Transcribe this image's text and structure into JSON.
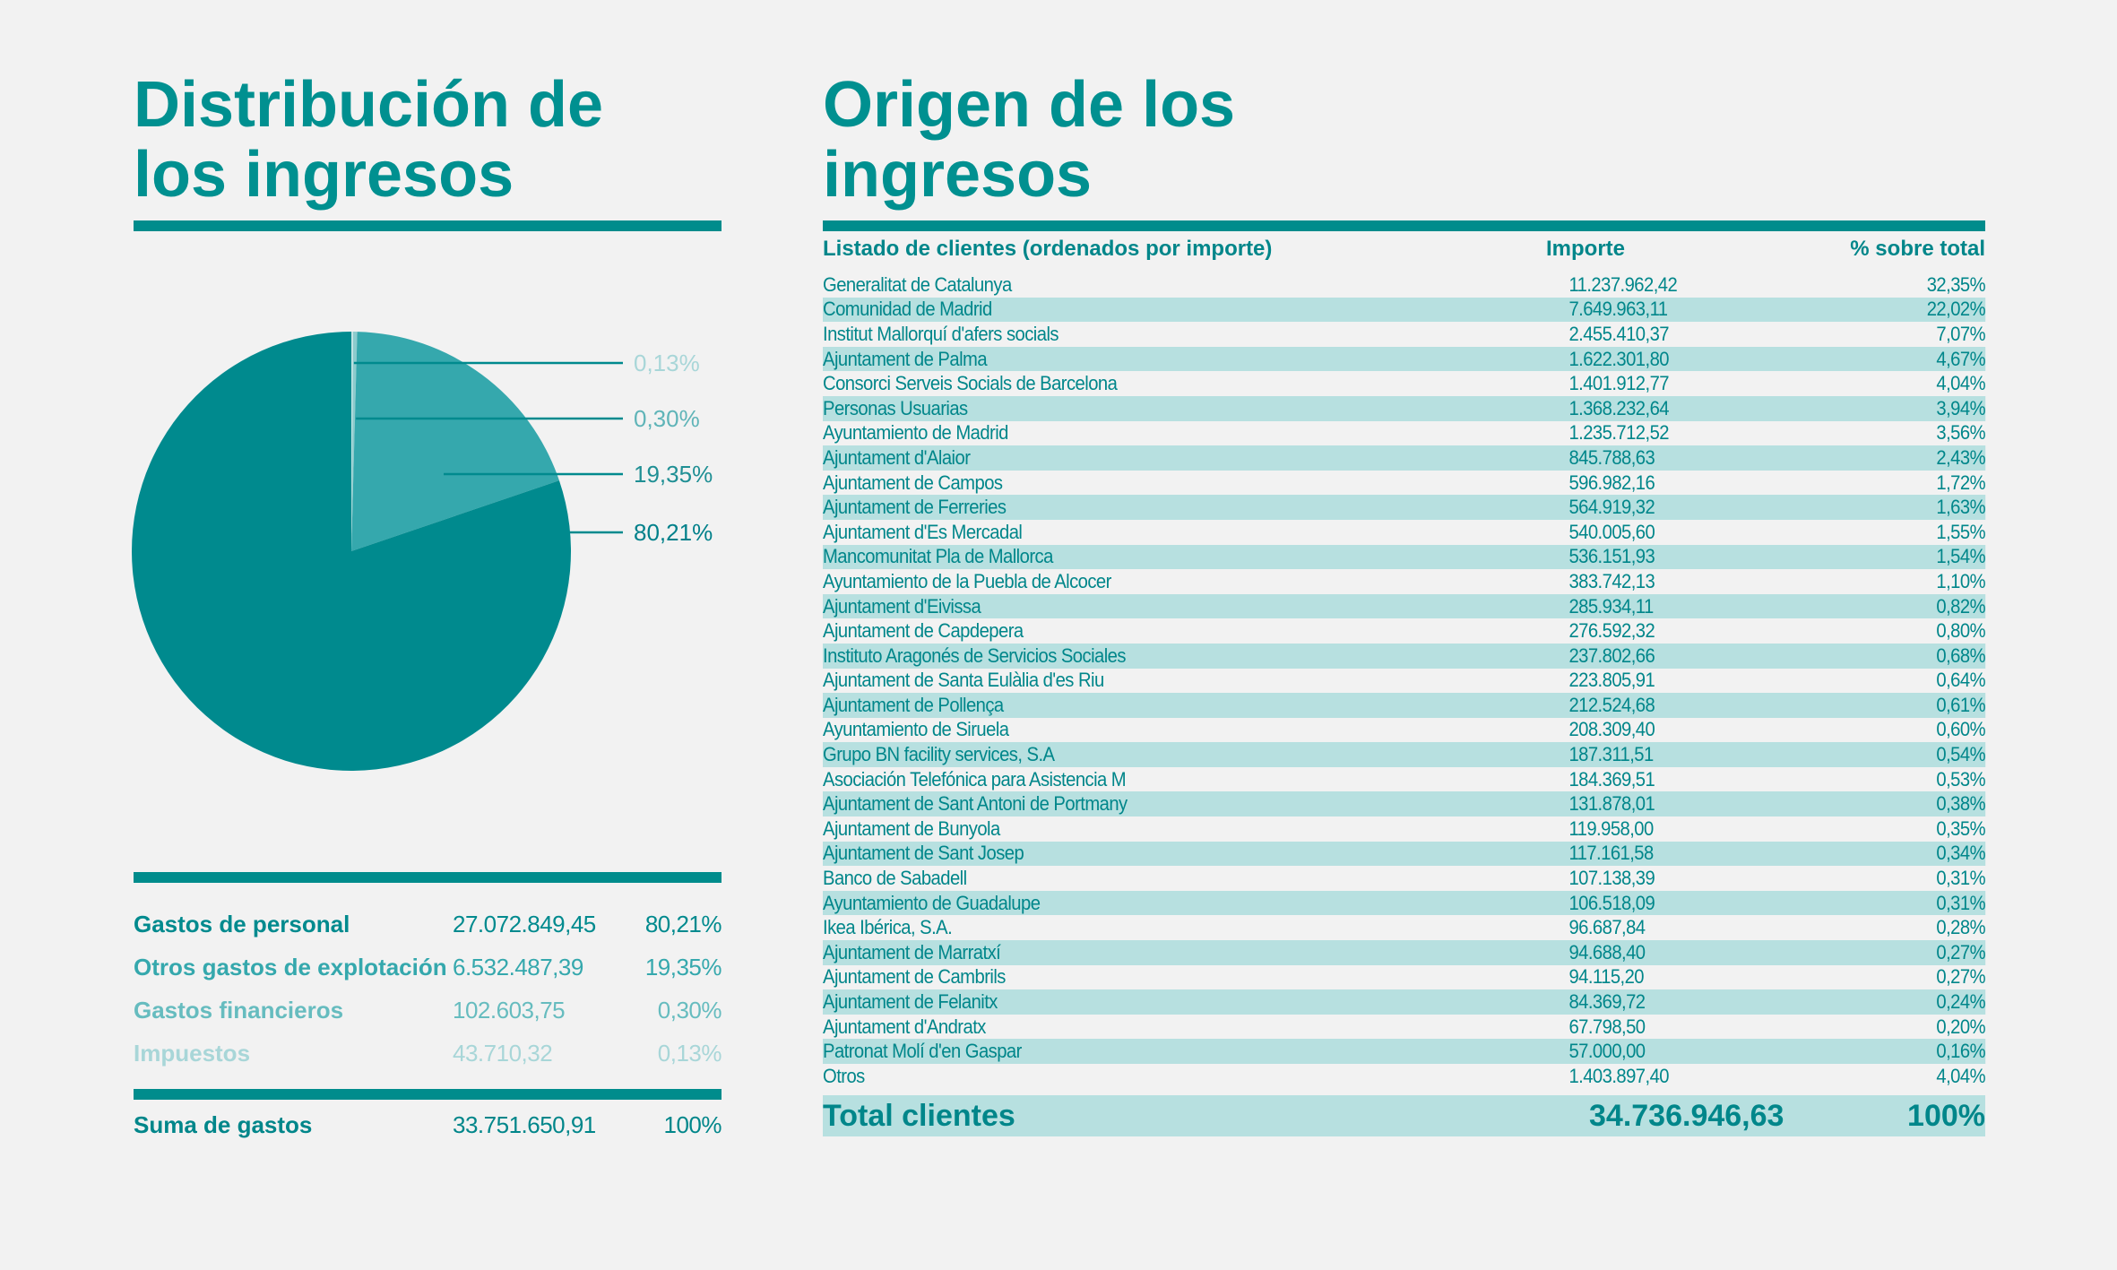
{
  "left": {
    "title_lines": [
      "Distribución de",
      "los ingresos"
    ],
    "summary": [
      {
        "name": "Gastos de personal",
        "amount": "27.072.849,45",
        "pct": "80,21%",
        "color": "#008a8e"
      },
      {
        "name": "Otros gastos de explotación",
        "amount": "6.532.487,39",
        "pct": "19,35%",
        "color": "#35a8ad"
      },
      {
        "name": "Gastos financieros",
        "amount": "102.603,75",
        "pct": "0,30%",
        "color": "#66bcbf"
      },
      {
        "name": "Impuestos",
        "amount": "43.710,32",
        "pct": "0,13%",
        "color": "#a8d6d8"
      }
    ],
    "total": {
      "name": "Suma de gastos",
      "amount": "33.751.650,91",
      "pct": "100%"
    }
  },
  "chart_data": {
    "type": "pie",
    "slices": [
      {
        "label": "0,13%",
        "value": 0.13,
        "color": "#c4e4e5"
      },
      {
        "label": "0,30%",
        "value": 0.3,
        "color": "#8ccbcd"
      },
      {
        "label": "19,35%",
        "value": 19.35,
        "color": "#35a8ad"
      },
      {
        "label": "80,21%",
        "value": 80.21,
        "color": "#008a8e"
      }
    ],
    "label_colors": [
      "#a8d6d8",
      "#5fb4b8",
      "#1f8f94",
      "#00808a"
    ]
  },
  "right": {
    "title_lines": [
      "Origen de los",
      "ingresos"
    ],
    "headers": {
      "client": "Listado de clientes (ordenados por importe)",
      "amount": "Importe",
      "pct": "% sobre total"
    },
    "rows": [
      {
        "name": "Generalitat de Catalunya",
        "amount": "11.237.962,42",
        "pct": "32,35%"
      },
      {
        "name": "Comunidad de Madrid",
        "amount": "7.649.963,11",
        "pct": "22,02%"
      },
      {
        "name": "Institut Mallorquí d'afers socials",
        "amount": "2.455.410,37",
        "pct": "7,07%"
      },
      {
        "name": "Ajuntament de Palma",
        "amount": "1.622.301,80",
        "pct": "4,67%"
      },
      {
        "name": "Consorci Serveis Socials de Barcelona",
        "amount": "1.401.912,77",
        "pct": "4,04%"
      },
      {
        "name": "Personas Usuarias",
        "amount": "1.368.232,64",
        "pct": "3,94%"
      },
      {
        "name": "Ayuntamiento de Madrid",
        "amount": "1.235.712,52",
        "pct": "3,56%"
      },
      {
        "name": "Ajuntament d'Alaior",
        "amount": "845.788,63",
        "pct": "2,43%"
      },
      {
        "name": "Ajuntament de Campos",
        "amount": "596.982,16",
        "pct": "1,72%"
      },
      {
        "name": "Ajuntament de Ferreries",
        "amount": "564.919,32",
        "pct": "1,63%"
      },
      {
        "name": "Ajuntament d'Es Mercadal",
        "amount": "540.005,60",
        "pct": "1,55%"
      },
      {
        "name": "Mancomunitat Pla de Mallorca",
        "amount": "536.151,93",
        "pct": "1,54%"
      },
      {
        "name": "Ayuntamiento de la Puebla de Alcocer",
        "amount": "383.742,13",
        "pct": "1,10%"
      },
      {
        "name": "Ajuntament d'Eivissa",
        "amount": "285.934,11",
        "pct": "0,82%"
      },
      {
        "name": "Ajuntament de Capdepera",
        "amount": "276.592,32",
        "pct": "0,80%"
      },
      {
        "name": "Instituto Aragonés de Servicios Sociales",
        "amount": "237.802,66",
        "pct": "0,68%"
      },
      {
        "name": "Ajuntament de Santa Eulàlia d'es Riu",
        "amount": "223.805,91",
        "pct": "0,64%"
      },
      {
        "name": "Ajuntament de Pollença",
        "amount": "212.524,68",
        "pct": "0,61%"
      },
      {
        "name": "Ayuntamiento de Siruela",
        "amount": "208.309,40",
        "pct": "0,60%"
      },
      {
        "name": "Grupo BN facility services, S.A",
        "amount": "187.311,51",
        "pct": "0,54%"
      },
      {
        "name": "Asociación Telefónica para Asistencia M",
        "amount": "184.369,51",
        "pct": "0,53%"
      },
      {
        "name": "Ajuntament de Sant Antoni de Portmany",
        "amount": "131.878,01",
        "pct": "0,38%"
      },
      {
        "name": "Ajuntament de Bunyola",
        "amount": "119.958,00",
        "pct": "0,35%"
      },
      {
        "name": "Ajuntament de Sant Josep",
        "amount": "117.161,58",
        "pct": "0,34%"
      },
      {
        "name": "Banco de Sabadell",
        "amount": "107.138,39",
        "pct": "0,31%"
      },
      {
        "name": "Ayuntamiento de Guadalupe",
        "amount": "106.518,09",
        "pct": "0,31%"
      },
      {
        "name": "Ikea Ibérica, S.A.",
        "amount": "96.687,84",
        "pct": "0,28%"
      },
      {
        "name": "Ajuntament de Marratxí",
        "amount": "94.688,40",
        "pct": "0,27%"
      },
      {
        "name": "Ajuntament de Cambrils",
        "amount": "94.115,20",
        "pct": "0,27%"
      },
      {
        "name": "Ajuntament de Felanitx",
        "amount": "84.369,72",
        "pct": "0,24%"
      },
      {
        "name": "Ajuntament d'Andratx",
        "amount": "67.798,50",
        "pct": "0,20%"
      },
      {
        "name": "Patronat Molí d'en Gaspar",
        "amount": "57.000,00",
        "pct": "0,16%"
      },
      {
        "name": "Otros",
        "amount": "1.403.897,40",
        "pct": "4,04%"
      }
    ],
    "total": {
      "name": "Total clientes",
      "amount": "34.736.946,63",
      "pct": "100%"
    }
  }
}
